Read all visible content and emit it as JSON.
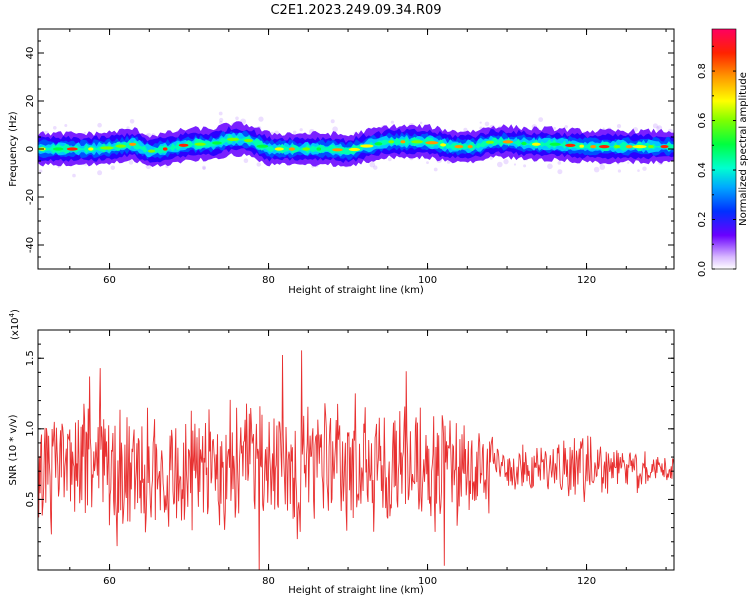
{
  "figure": {
    "title": "C2E1.2023.249.09.34.R09"
  },
  "chart_data": [
    {
      "type": "heatmap",
      "title": "C2E1.2023.249.09.34.R09",
      "xlabel": "Height of straight line (km)",
      "ylabel": "Frequency (Hz)",
      "xlim": [
        51,
        131
      ],
      "ylim": [
        -50,
        50
      ],
      "xticks": [
        60,
        80,
        100,
        120
      ],
      "yticks": [
        40,
        20,
        0,
        -20,
        -40
      ],
      "ridge_frequency_hz": {
        "x": [
          51,
          55,
          58,
          60,
          63,
          65,
          67,
          70,
          73,
          75,
          77,
          78,
          80,
          83,
          85,
          88,
          90,
          92,
          95,
          98,
          100,
          103,
          106,
          108,
          110,
          113,
          116,
          120,
          123,
          126,
          129,
          131
        ],
        "y": [
          0,
          0,
          0,
          0.5,
          2,
          -1,
          0,
          2,
          2,
          4,
          4,
          3,
          0,
          0,
          0,
          0,
          -1,
          1,
          3,
          3,
          3,
          1,
          1,
          3,
          3,
          2,
          2,
          1,
          1,
          1,
          1,
          1
        ]
      },
      "colorbar": {
        "label": "Normalized spectral amplitude",
        "ticks": [
          0.0,
          0.2,
          0.4,
          0.6,
          0.8
        ],
        "tick_labels": [
          "0.0",
          "0.2",
          "0.4",
          "0.6",
          "0.8"
        ],
        "range": [
          0,
          0.97
        ]
      }
    },
    {
      "type": "line",
      "xlabel": "Height of straight line (km)",
      "ylabel": "SNR (10 * v/v)",
      "scale_label": "(x10",
      "scale_exponent": "4",
      "scale_close": ")",
      "xlim": [
        51,
        131
      ],
      "ylim": [
        0.0,
        1.7
      ],
      "xticks": [
        60,
        80,
        100,
        120
      ],
      "yticks": [
        0.5,
        1.0,
        1.5
      ],
      "ytick_labels": [
        "0.5",
        "1.0",
        "1.5"
      ],
      "series": [
        {
          "name": "SNR",
          "color": "#e83030",
          "x_start": 51,
          "x_end": 131,
          "baseline": 0.72,
          "envelope": {
            "x": [
              51,
              60,
              70,
              80,
              90,
              100,
              105,
              110,
              115,
              120,
              125,
              131
            ],
            "amplitude": [
              0.45,
              0.48,
              0.5,
              0.5,
              0.55,
              0.48,
              0.45,
              0.2,
              0.2,
              0.25,
              0.15,
              0.12
            ]
          }
        }
      ]
    }
  ]
}
